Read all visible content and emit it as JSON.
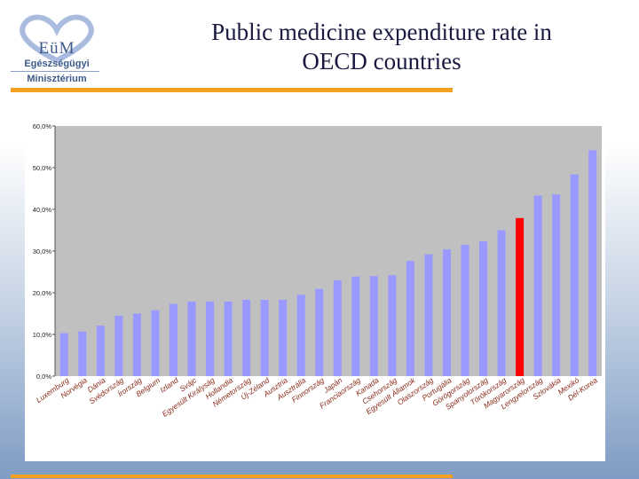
{
  "logo": {
    "name": "EüM",
    "line1": "Egészségügyi",
    "line2": "Minisztérium",
    "heart_color": "#a9bce0"
  },
  "title": {
    "line1": "Public medicine expenditure rate in",
    "line2": "OECD countries"
  },
  "colors": {
    "bar": "#9999ff",
    "highlight": "#ff0000",
    "plot_bg": "#c0c0c0",
    "accent_rule": "#f4a020"
  },
  "chart_data": {
    "type": "bar",
    "categories": [
      "Luxemburg",
      "Norvégia",
      "Dánia",
      "Svédország",
      "Írország",
      "Belgium",
      "Izland",
      "Svájc",
      "Egyesült Királyság",
      "Hollandia",
      "Németország",
      "Új-Zéland",
      "Ausztria",
      "Ausztrália",
      "Finnország",
      "Japán",
      "Franciaország",
      "Kanada",
      "Csehország",
      "Egyesült Államok",
      "Olaszország",
      "Portugália",
      "Görögország",
      "Spanyolország",
      "Törökország",
      "Magyarország",
      "Lengyelország",
      "Szlovákia",
      "Mexikó",
      "Dél-Korea"
    ],
    "values": [
      10.3,
      10.7,
      12.1,
      14.5,
      15.0,
      15.8,
      17.3,
      17.9,
      17.9,
      17.9,
      18.3,
      18.3,
      18.3,
      19.5,
      20.9,
      23.0,
      23.9,
      24.0,
      24.2,
      27.6,
      29.2,
      30.4,
      31.5,
      32.3,
      35.0,
      37.9,
      43.3,
      43.6,
      48.4,
      54.2
    ],
    "highlight_index": 25,
    "yticks": [
      "0,0%",
      "10,0%",
      "20,0%",
      "30,0%",
      "40,0%",
      "50,0%",
      "60,0%"
    ],
    "ylim": [
      0,
      60
    ],
    "grid": false,
    "legend": "none"
  }
}
